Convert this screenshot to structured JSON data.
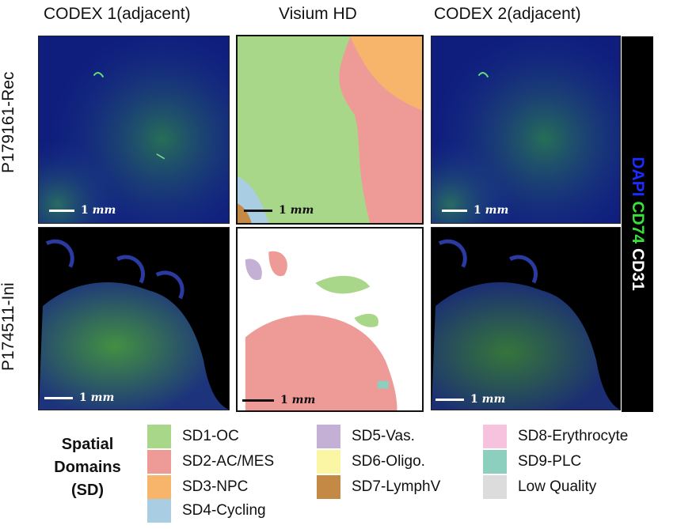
{
  "columns": [
    "CODEX 1(adjacent)",
    "Visium HD",
    "CODEX 2(adjacent)"
  ],
  "rows": [
    "P179161-Rec",
    "P174511-Ini"
  ],
  "scalebar": {
    "value": "1",
    "unit": "mm"
  },
  "channels": [
    {
      "name": "DAPI",
      "color": "#1a2cff"
    },
    {
      "name": "CD74",
      "color": "#39e03a"
    },
    {
      "name": "CD31",
      "color": "#ffffff"
    }
  ],
  "legend": {
    "title_lines": [
      "Spatial",
      "Domains",
      "(SD)"
    ],
    "items": [
      {
        "label": "SD1-OC",
        "color": "#a9d78a"
      },
      {
        "label": "SD2-AC/MES",
        "color": "#ee9b98"
      },
      {
        "label": "SD3-NPC",
        "color": "#f6b56a"
      },
      {
        "label": "SD4-Cycling",
        "color": "#a9cde2"
      },
      {
        "label": "SD5-Vas.",
        "color": "#c3b0d4"
      },
      {
        "label": "SD6-Oligo.",
        "color": "#fbf6a4"
      },
      {
        "label": "SD7-LymphV",
        "color": "#c48a45"
      },
      {
        "label": "SD8-Erythrocyte",
        "color": "#f6c2dd"
      },
      {
        "label": "SD9-PLC",
        "color": "#8dcfbe"
      },
      {
        "label": "Low Quality",
        "color": "#dcdcdc"
      }
    ]
  }
}
